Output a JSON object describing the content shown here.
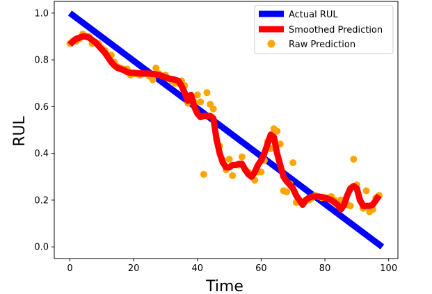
{
  "chart_data": {
    "type": "line",
    "title": "",
    "xlabel": "Time",
    "ylabel": "RUL",
    "xlim": [
      -4.9,
      102.9
    ],
    "ylim": [
      -0.05,
      1.05
    ],
    "xticks": [
      0,
      20,
      40,
      60,
      80,
      100
    ],
    "yticks": [
      0.0,
      0.2,
      0.4,
      0.6,
      0.8,
      1.0
    ],
    "xtick_labels": [
      "0",
      "20",
      "40",
      "60",
      "80",
      "100"
    ],
    "ytick_labels": [
      "0.0",
      "0.2",
      "0.4",
      "0.6",
      "0.8",
      "1.0"
    ],
    "grid": false,
    "legend_position": "upper-right",
    "series": [
      {
        "name": "Actual RUL",
        "kind": "line",
        "color": "#0000ff",
        "x": [
          0,
          98
        ],
        "y": [
          1.0,
          0.0
        ]
      },
      {
        "name": "Smoothed Prediction",
        "kind": "line",
        "color": "#ff0000",
        "x": [
          0,
          1,
          2,
          3,
          4,
          5,
          6,
          7,
          8,
          9,
          10,
          11,
          12,
          13,
          14,
          15,
          16,
          17,
          18,
          19,
          20,
          21,
          22,
          23,
          24,
          25,
          26,
          27,
          28,
          29,
          30,
          31,
          32,
          33,
          34,
          35,
          36,
          37,
          38,
          39,
          40,
          41,
          42,
          43,
          44,
          45,
          46,
          47,
          48,
          49,
          50,
          51,
          52,
          53,
          54,
          55,
          56,
          57,
          58,
          59,
          60,
          61,
          62,
          63,
          64,
          65,
          66,
          67,
          68,
          69,
          70,
          71,
          72,
          73,
          74,
          75,
          76,
          77,
          78,
          79,
          80,
          81,
          82,
          83,
          84,
          85,
          86,
          87,
          88,
          89,
          90,
          91,
          92,
          93,
          94,
          95,
          96,
          97
        ],
        "y": [
          0.865,
          0.88,
          0.89,
          0.895,
          0.9,
          0.9,
          0.895,
          0.885,
          0.875,
          0.86,
          0.845,
          0.83,
          0.81,
          0.79,
          0.775,
          0.765,
          0.76,
          0.755,
          0.748,
          0.745,
          0.745,
          0.743,
          0.742,
          0.742,
          0.741,
          0.741,
          0.74,
          0.738,
          0.735,
          0.73,
          0.725,
          0.72,
          0.718,
          0.715,
          0.71,
          0.69,
          0.66,
          0.625,
          0.65,
          0.6,
          0.57,
          0.555,
          0.56,
          0.56,
          0.56,
          0.55,
          0.46,
          0.4,
          0.36,
          0.34,
          0.34,
          0.35,
          0.35,
          0.355,
          0.355,
          0.33,
          0.31,
          0.3,
          0.32,
          0.35,
          0.37,
          0.4,
          0.44,
          0.48,
          0.47,
          0.4,
          0.35,
          0.3,
          0.28,
          0.265,
          0.25,
          0.22,
          0.2,
          0.18,
          0.2,
          0.21,
          0.215,
          0.215,
          0.215,
          0.213,
          0.21,
          0.205,
          0.2,
          0.19,
          0.18,
          0.16,
          0.18,
          0.22,
          0.25,
          0.26,
          0.25,
          0.2,
          0.175,
          0.175,
          0.175,
          0.18,
          0.2,
          0.22
        ]
      },
      {
        "name": "Raw Prediction",
        "kind": "scatter",
        "color": "#ffa500",
        "x": [
          0,
          1,
          2,
          3,
          4,
          5,
          6,
          7,
          8,
          9,
          10,
          11,
          12,
          13,
          14,
          15,
          16,
          17,
          18,
          19,
          20,
          21,
          22,
          23,
          24,
          25,
          26,
          27,
          28,
          29,
          30,
          31,
          32,
          33,
          34,
          35,
          36,
          37,
          38,
          39,
          40,
          41,
          42,
          43,
          44,
          45,
          46,
          47,
          48,
          49,
          50,
          51,
          52,
          53,
          54,
          55,
          56,
          57,
          58,
          59,
          60,
          61,
          62,
          63,
          64,
          65,
          66,
          67,
          68,
          69,
          70,
          71,
          72,
          73,
          74,
          75,
          76,
          77,
          78,
          79,
          80,
          81,
          82,
          83,
          84,
          85,
          86,
          87,
          88,
          89,
          90,
          91,
          92,
          93,
          94,
          95,
          96,
          97
        ],
        "y": [
          0.87,
          0.88,
          0.88,
          0.89,
          0.91,
          0.9,
          0.9,
          0.87,
          0.875,
          0.87,
          0.85,
          0.84,
          0.82,
          0.82,
          0.79,
          0.77,
          0.765,
          0.76,
          0.76,
          0.735,
          0.74,
          0.74,
          0.735,
          0.74,
          0.74,
          0.73,
          0.715,
          0.765,
          0.74,
          0.73,
          0.735,
          0.72,
          0.71,
          0.7,
          0.7,
          0.71,
          0.69,
          0.615,
          0.64,
          0.62,
          0.65,
          0.62,
          0.31,
          0.66,
          0.61,
          0.59,
          0.46,
          0.43,
          0.37,
          0.33,
          0.375,
          0.305,
          0.35,
          0.35,
          0.385,
          0.33,
          0.32,
          0.3,
          0.285,
          0.32,
          0.32,
          0.37,
          0.45,
          0.42,
          0.505,
          0.495,
          0.44,
          0.24,
          0.235,
          0.27,
          0.36,
          0.19,
          0.2,
          0.19,
          0.2,
          0.2,
          0.21,
          0.22,
          0.215,
          0.21,
          0.21,
          0.21,
          0.215,
          0.2,
          0.18,
          0.2,
          0.2,
          0.18,
          0.175,
          0.375,
          0.265,
          0.2,
          0.165,
          0.24,
          0.15,
          0.16,
          0.21,
          0.22
        ]
      }
    ]
  }
}
